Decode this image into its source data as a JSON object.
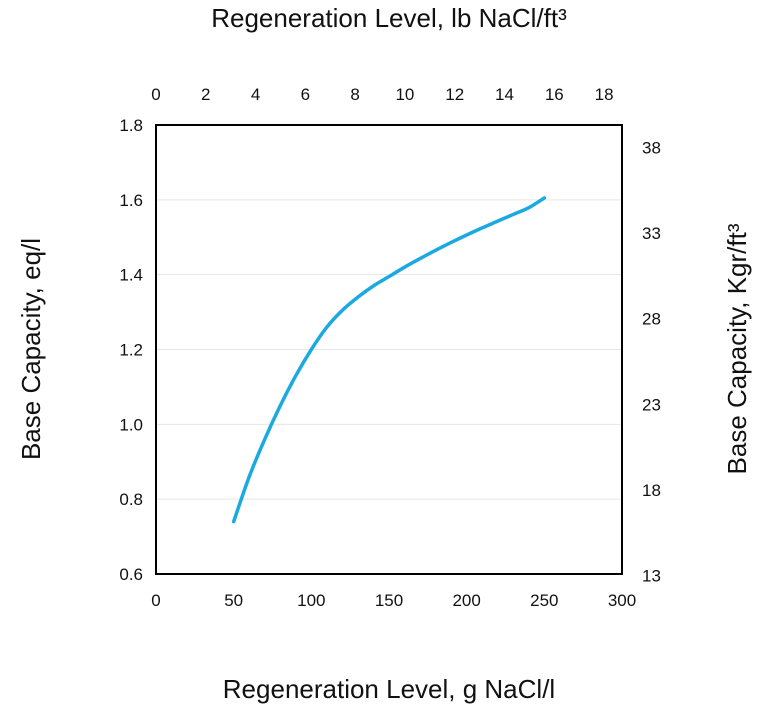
{
  "chart_data": {
    "type": "line",
    "xlabel": "Regeneration Level, g NaCl/l",
    "x2label": "Regeneration Level, lb NaCl/ft³",
    "ylabel": "Base Capacity, eq/l",
    "y2label": "Base Capacity, Kgr/ft³",
    "xlim": [
      0,
      300
    ],
    "ylim": [
      0.6,
      1.8
    ],
    "x2lim": [
      0,
      18.72
    ],
    "y2lim": [
      13.1,
      39.3
    ],
    "x_ticks": [
      "0",
      "50",
      "100",
      "150",
      "200",
      "250",
      "300"
    ],
    "x2_ticks": [
      "0",
      "2",
      "4",
      "6",
      "8",
      "10",
      "12",
      "14",
      "16",
      "18"
    ],
    "y_ticks": [
      "0.6",
      "0.8",
      "1.0",
      "1.2",
      "1.4",
      "1.6",
      "1.8"
    ],
    "y2_ticks": [
      "13",
      "18",
      "23",
      "28",
      "33",
      "38"
    ],
    "grid": true,
    "line_color": "#1BA9E1",
    "grid_color": "#e6e6e6",
    "series": [
      {
        "x": [
          50,
          60,
          70,
          80,
          90,
          100,
          110,
          120,
          130,
          140,
          150,
          160,
          170,
          180,
          190,
          200,
          210,
          220,
          230,
          240,
          250
        ],
        "values": [
          0.74,
          0.86,
          0.96,
          1.05,
          1.13,
          1.2,
          1.26,
          1.305,
          1.34,
          1.37,
          1.395,
          1.42,
          1.443,
          1.465,
          1.486,
          1.506,
          1.525,
          1.543,
          1.561,
          1.579,
          1.605
        ]
      }
    ]
  }
}
